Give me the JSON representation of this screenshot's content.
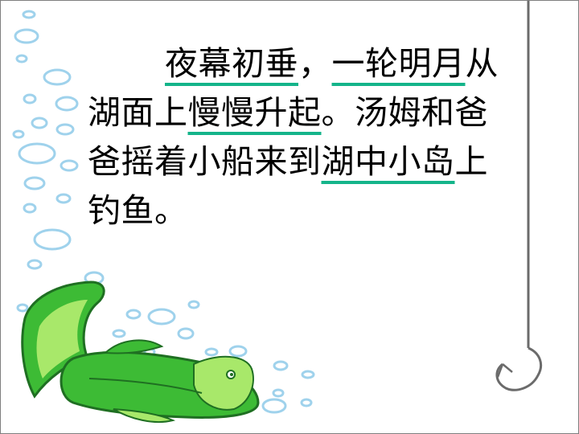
{
  "passage": {
    "line1": {
      "seg1": "夜幕初垂",
      "seg2": "，",
      "seg3": "一轮明月",
      "seg4": "从"
    },
    "line2": {
      "seg1": "湖面上",
      "seg2": "慢慢升起",
      "seg3": "。汤姆和爸"
    },
    "line3": {
      "seg1": "爸摇着小船来到",
      "seg2": "湖中小岛",
      "seg3": "上"
    },
    "line4": {
      "seg1": "钓鱼。"
    }
  },
  "colors": {
    "underline": "#14b48a",
    "bubble": "#9fd2ec",
    "fish_body": "#3dbb35",
    "fish_light": "#a8e86a",
    "fish_outline": "#1f6f22",
    "hook": "#6b6b6b",
    "border": "#7f7f7f"
  },
  "icons": {
    "bubbles": "bubble-icon",
    "fish": "fish-icon",
    "hook": "fishing-hook-icon"
  }
}
